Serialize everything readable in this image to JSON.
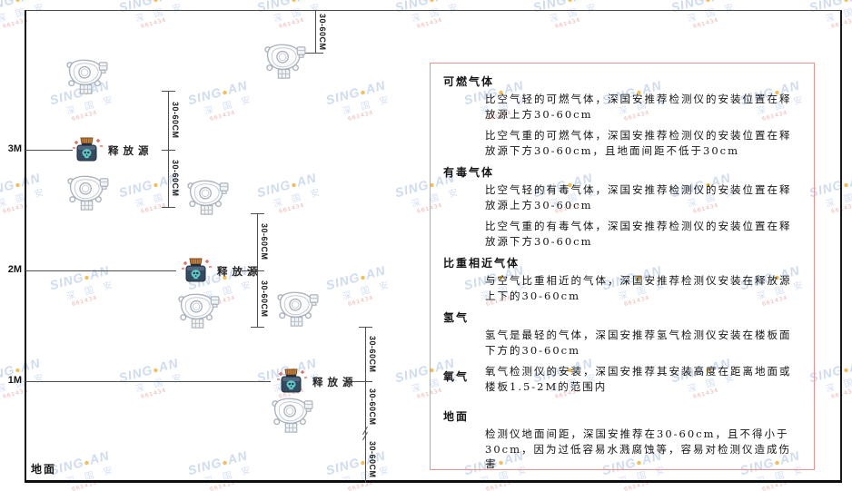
{
  "watermark": {
    "latin_left": "SING",
    "dot": "●",
    "latin_right": "AN",
    "cjk": "深 国 安",
    "code": "661434"
  },
  "diagram": {
    "height_labels": [
      "3M",
      "2M",
      "1M"
    ],
    "ground_label": "地面",
    "release_source_label": "释放源",
    "dim_label": "30-60CM"
  },
  "panel": {
    "sections": [
      {
        "heading": "可燃气体",
        "paragraphs": [
          "比空气轻的可燃气体，深国安推荐检测仪的安装位置在释放源上方30-60cm",
          "比空气重的可燃气体，深国安推荐检测仪的安装位置在释放源下方30-60cm，且地面间距不低于30cm"
        ]
      },
      {
        "heading": "有毒气体",
        "paragraphs": [
          "比空气轻的有毒气体，深国安推荐检测仪的安装位置在释放源上方30-60cm",
          "比空气重的有毒气体，深国安推荐检测仪的安装位置在释放源下方30-60cm"
        ]
      },
      {
        "heading": "比重相近气体",
        "paragraphs": [
          "与空气比重相近的气体，深国安推荐检测仪安装在释放源上下的30-60cm"
        ]
      },
      {
        "heading": "氢气",
        "paragraphs": [
          "氢气是最轻的气体，深国安推荐氢气检测仪安装在楼板面下方的30-60cm"
        ]
      },
      {
        "heading": "氧气",
        "paragraphs": [
          "氧气检测仪的安装，深国安推荐其安装高度在距离地面或楼板1.5-2M的范围内"
        ]
      },
      {
        "heading": "地面",
        "paragraphs": [
          "检测仪地面间距，深国安推荐在30-60cm，且不得小于30cm，因为过低容易水溅腐蚀等，容易对检测仪造成伤害"
        ]
      }
    ]
  }
}
